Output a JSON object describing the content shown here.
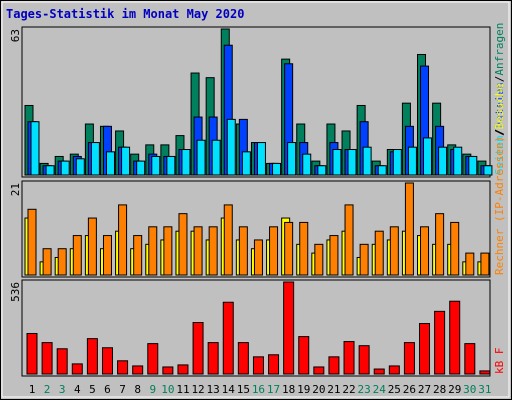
{
  "title": "Tages-Statistik im Monat May 2020",
  "chart_data": [
    {
      "type": "bar",
      "categories": [
        "1",
        "2",
        "3",
        "4",
        "5",
        "6",
        "7",
        "8",
        "9",
        "10",
        "11",
        "12",
        "13",
        "14",
        "15",
        "16",
        "17",
        "18",
        "19",
        "20",
        "21",
        "22",
        "23",
        "24",
        "25",
        "26",
        "27",
        "28",
        "29",
        "30",
        "31"
      ],
      "category_colors": [
        "#000000",
        "#00805c",
        "#00805c",
        "#000000",
        "#000000",
        "#000000",
        "#000000",
        "#000000",
        "#00805c",
        "#00805c",
        "#000000",
        "#000000",
        "#000000",
        "#000000",
        "#000000",
        "#00805c",
        "#00805c",
        "#000000",
        "#000000",
        "#000000",
        "#000000",
        "#000000",
        "#00805c",
        "#00805c",
        "#000000",
        "#000000",
        "#000000",
        "#000000",
        "#000000",
        "#00805c",
        "#00805c"
      ],
      "ylim": [
        0,
        63
      ],
      "yticks": [
        63
      ],
      "series": [
        {
          "name": "Anfragen",
          "color": "#00805c",
          "values": [
            30,
            5,
            8,
            9,
            22,
            21,
            19,
            9,
            13,
            13,
            17,
            44,
            42,
            63,
            22,
            14,
            5,
            50,
            22,
            6,
            22,
            19,
            30,
            6,
            11,
            31,
            52,
            31,
            13,
            9,
            6
          ]
        },
        {
          "name": "Dateien",
          "color": "#0040ff",
          "values": [
            23,
            4,
            6,
            8,
            14,
            21,
            12,
            6,
            9,
            8,
            11,
            25,
            25,
            56,
            24,
            14,
            5,
            48,
            14,
            4,
            14,
            11,
            23,
            4,
            10,
            21,
            47,
            21,
            11,
            8,
            4
          ]
        },
        {
          "name": "Seiten",
          "color": "#00e0ff",
          "values": [
            23,
            4,
            6,
            7,
            14,
            10,
            12,
            6,
            8,
            8,
            11,
            15,
            15,
            24,
            10,
            14,
            5,
            14,
            9,
            4,
            11,
            11,
            12,
            4,
            11,
            12,
            16,
            12,
            12,
            8,
            4
          ]
        }
      ]
    },
    {
      "type": "bar",
      "ylim": [
        0,
        21
      ],
      "yticks": [
        21
      ],
      "series": [
        {
          "name": "Besuche",
          "color": "#ffff00",
          "values": [
            13,
            3,
            4,
            6,
            9,
            6,
            10,
            6,
            7,
            8,
            10,
            10,
            8,
            13,
            8,
            6,
            8,
            13,
            7,
            5,
            8,
            10,
            4,
            7,
            8,
            10,
            9,
            7,
            7,
            3,
            3
          ]
        },
        {
          "name": "Rechner (IP-Adressen)",
          "color": "#ff8000",
          "values": [
            15,
            6,
            6,
            9,
            13,
            9,
            16,
            9,
            11,
            11,
            14,
            11,
            11,
            16,
            11,
            8,
            11,
            12,
            12,
            7,
            9,
            16,
            7,
            10,
            11,
            21,
            11,
            14,
            12,
            5,
            5
          ]
        }
      ]
    },
    {
      "type": "bar",
      "ylim": [
        0,
        536
      ],
      "yticks": [
        536
      ],
      "series": [
        {
          "name": "kB F",
          "color": "#ff0000",
          "values": [
            236,
            183,
            147,
            59,
            206,
            153,
            77,
            47,
            177,
            41,
            53,
            300,
            183,
            418,
            183,
            100,
            112,
            536,
            218,
            41,
            100,
            189,
            165,
            29,
            47,
            183,
            294,
            365,
            424,
            177,
            18
          ]
        }
      ]
    }
  ]
}
